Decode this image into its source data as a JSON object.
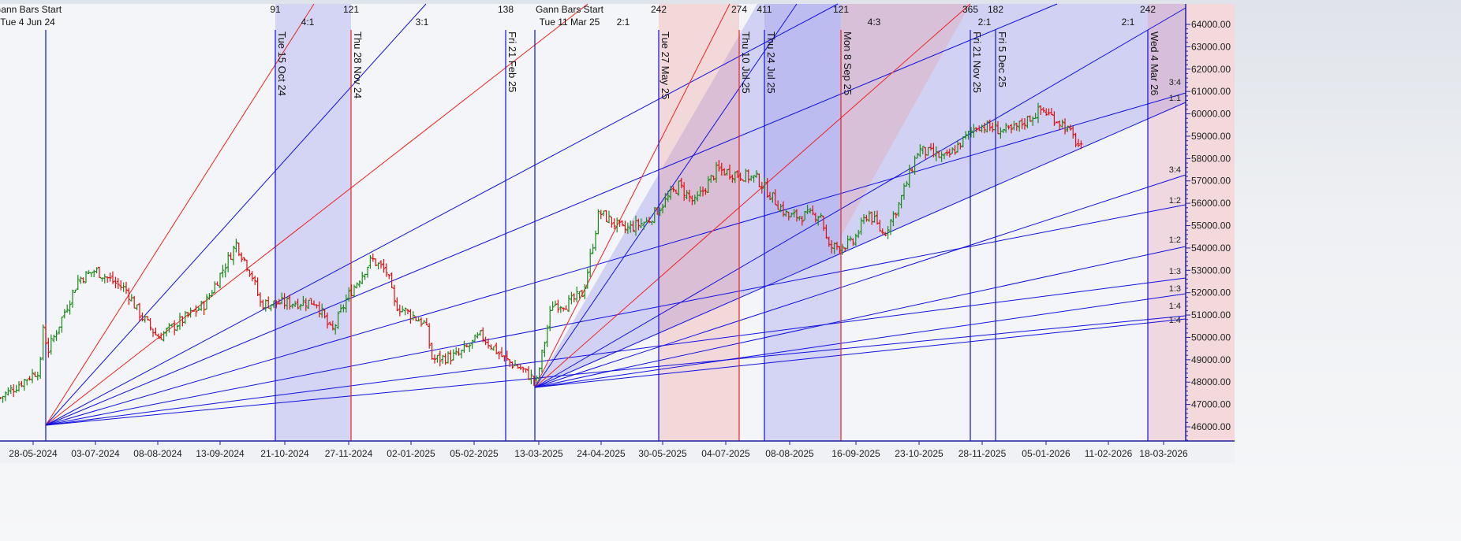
{
  "chart_data": {
    "type": "ohlc-bar",
    "ylim": [
      45500,
      64800
    ],
    "y_ticks": [
      46000,
      47000,
      48000,
      49000,
      50000,
      51000,
      52000,
      53000,
      54000,
      55000,
      56000,
      57000,
      58000,
      59000,
      60000,
      61000,
      62000,
      63000,
      64000
    ],
    "y_tick_labels": [
      "46000.00",
      "47000.00",
      "48000.00",
      "49000.00",
      "50000.00",
      "51000.00",
      "52000.00",
      "53000.00",
      "54000.00",
      "55000.00",
      "56000.00",
      "57000.00",
      "58000.00",
      "59000.00",
      "60000.00",
      "61000.00",
      "62000.00",
      "63000.00",
      "64000.00"
    ],
    "x_tick_labels": [
      "28-05-2024",
      "03-07-2024",
      "08-08-2024",
      "13-09-2024",
      "21-10-2024",
      "27-11-2024",
      "02-01-2025",
      "05-02-2025",
      "13-03-2025",
      "24-04-2025",
      "30-05-2025",
      "04-07-2025",
      "08-08-2025",
      "16-09-2025",
      "23-10-2025",
      "28-11-2025",
      "05-01-2026",
      "11-02-2026",
      "18-03-2026"
    ],
    "colors": {
      "up": "#1a8a1a",
      "down": "#e01010",
      "fan_blue": "#1010e0",
      "fan_red": "#f02020"
    },
    "price_path": [
      [
        "2024-05-09",
        47300
      ],
      [
        "2024-06-01",
        48600
      ],
      [
        "2024-06-03",
        50800
      ],
      [
        "2024-06-05",
        49300
      ],
      [
        "2024-06-23",
        52600
      ],
      [
        "2024-07-03",
        53000
      ],
      [
        "2024-07-21",
        52100
      ],
      [
        "2024-07-27",
        51200
      ],
      [
        "2024-08-08",
        50000
      ],
      [
        "2024-09-04",
        51500
      ],
      [
        "2024-09-22",
        54200
      ],
      [
        "2024-10-01",
        52800
      ],
      [
        "2024-10-06",
        51500
      ],
      [
        "2024-11-07",
        51600
      ],
      [
        "2024-11-16",
        50200
      ],
      [
        "2024-11-25",
        51800
      ],
      [
        "2024-12-09",
        53500
      ],
      [
        "2024-12-18",
        52900
      ],
      [
        "2024-12-22",
        51500
      ],
      [
        "2025-01-09",
        50600
      ],
      [
        "2025-01-13",
        49000
      ],
      [
        "2025-01-28",
        49200
      ],
      [
        "2025-02-10",
        50100
      ],
      [
        "2025-02-24",
        49000
      ],
      [
        "2025-03-05",
        48600
      ],
      [
        "2025-03-14",
        48000
      ],
      [
        "2025-03-23",
        51500
      ],
      [
        "2025-04-01",
        51500
      ],
      [
        "2025-04-10",
        52000
      ],
      [
        "2025-04-19",
        55600
      ],
      [
        "2025-05-03",
        54800
      ],
      [
        "2025-05-17",
        55200
      ],
      [
        "2025-06-04",
        56800
      ],
      [
        "2025-06-13",
        56000
      ],
      [
        "2025-06-26",
        57500
      ],
      [
        "2025-07-19",
        57100
      ],
      [
        "2025-08-06",
        55400
      ],
      [
        "2025-08-25",
        55500
      ],
      [
        "2025-08-29",
        54000
      ],
      [
        "2025-09-12",
        54200
      ],
      [
        "2025-09-21",
        55600
      ],
      [
        "2025-09-30",
        54600
      ],
      [
        "2025-10-09",
        56000
      ],
      [
        "2025-10-20",
        58400
      ],
      [
        "2025-11-05",
        58000
      ],
      [
        "2025-11-23",
        59500
      ],
      [
        "2025-12-12",
        59200
      ],
      [
        "2025-12-30",
        60200
      ],
      [
        "2026-01-12",
        59500
      ],
      [
        "2026-01-22",
        58400
      ]
    ],
    "gann_starts": [
      {
        "title": "Gann Bars Start",
        "date_label": "Tue 4 Jun 24"
      },
      {
        "title": "Gann Bars Start",
        "date_label": "Tue 11 Mar 25"
      }
    ],
    "vertical_lines": [
      {
        "label": "Tue 15 Oct 24",
        "count": "91",
        "color": "blue"
      },
      {
        "label": "Thu 28 Nov 24",
        "count": "121",
        "color": "red"
      },
      {
        "label": "Fri 21 Feb 25",
        "count": "138",
        "color": "blue"
      },
      {
        "label": "Tue 27 May 25",
        "count": "242",
        "color": "blue"
      },
      {
        "label": "Thu 10 Jul 25",
        "count": "274",
        "color": "red"
      },
      {
        "label": "Thu 24 Jul 25",
        "count": "411",
        "color": "blue"
      },
      {
        "label": "Mon 8 Sep 25",
        "count": "121",
        "color": "red"
      },
      {
        "label": "Fri 21 Nov 25",
        "count": "365",
        "color": "blue"
      },
      {
        "label": "Fri 5 Dec 25",
        "count": "182",
        "color": "blue"
      },
      {
        "label": "Wed 4 Mar 26",
        "count": "242",
        "color": "blue"
      }
    ],
    "fan_top_labels": [
      "4:1",
      "3:1",
      "2:1",
      "4:3",
      "2:1",
      "2:1"
    ],
    "fan_right_labels": [
      "3:4",
      "1:1",
      "3:4",
      "1:2",
      "1:2",
      "1:3",
      "1:3",
      "1:4",
      "1:4"
    ]
  }
}
